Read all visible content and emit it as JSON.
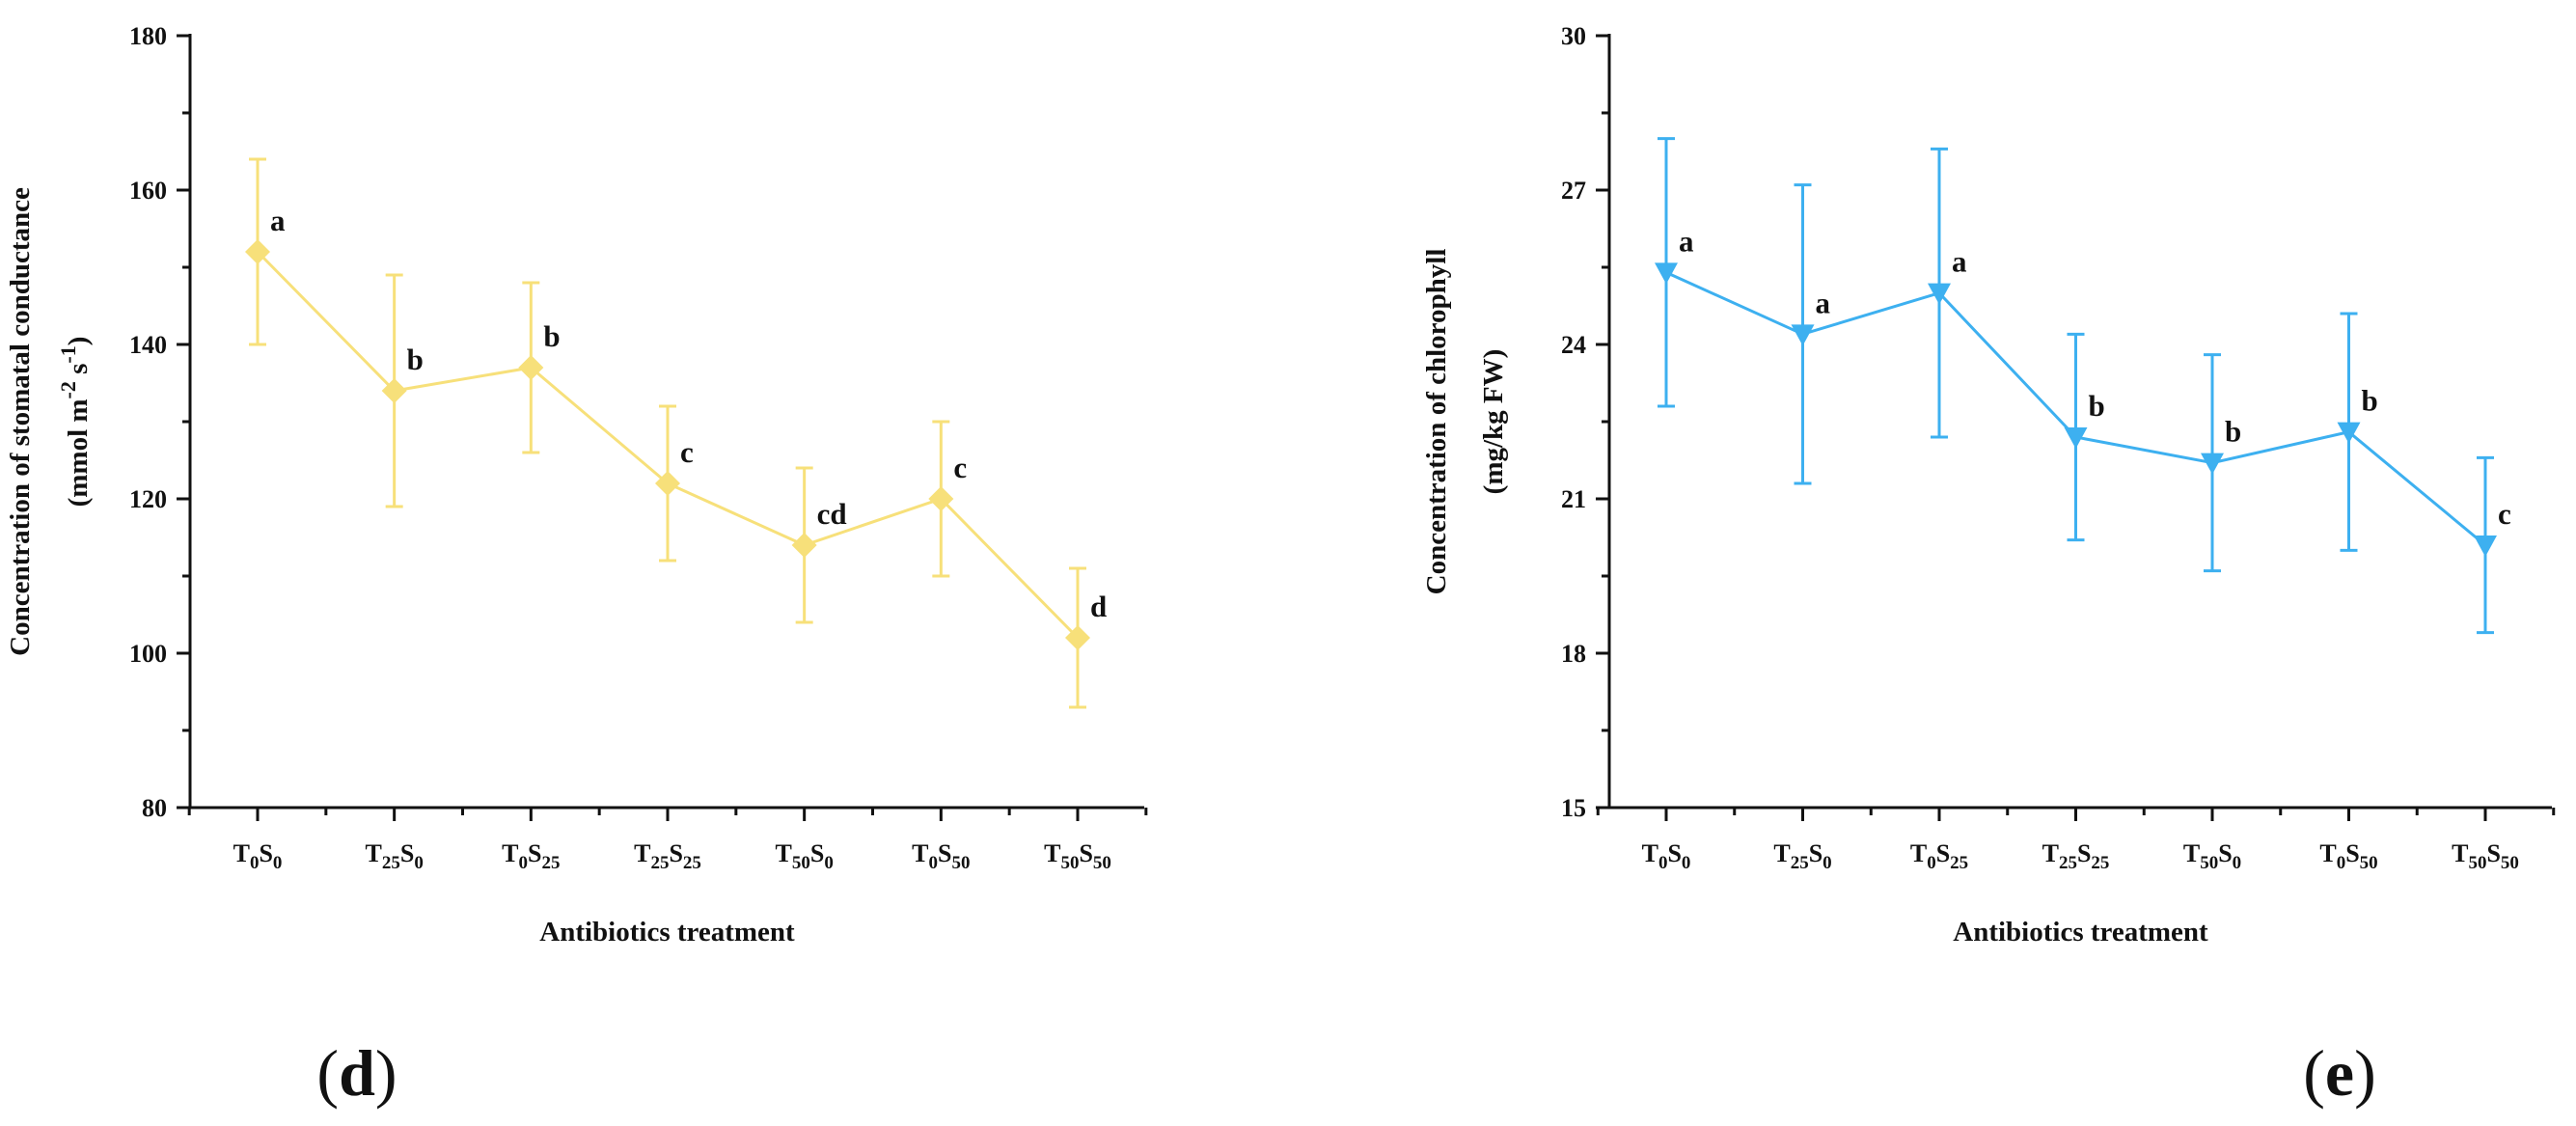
{
  "chart_data": [
    {
      "type": "line",
      "panel_label": "(d)",
      "title": "",
      "xlabel": "Antibiotics treatment",
      "ylabel_line1": "Concentration of stomatal conductance",
      "ylabel_line2": {
        "pre": "(mmol m",
        "sup1": "-2",
        "mid": " s",
        "sup2": "-1",
        "post": ")"
      },
      "categories": [
        {
          "base": "T",
          "sub1": "0",
          "mid": "S",
          "sub2": "0"
        },
        {
          "base": "T",
          "sub1": "25",
          "mid": "S",
          "sub2": "0"
        },
        {
          "base": "T",
          "sub1": "0",
          "mid": "S",
          "sub2": "25"
        },
        {
          "base": "T",
          "sub1": "25",
          "mid": "S",
          "sub2": "25"
        },
        {
          "base": "T",
          "sub1": "50",
          "mid": "S",
          "sub2": "0"
        },
        {
          "base": "T",
          "sub1": "0",
          "mid": "S",
          "sub2": "50"
        },
        {
          "base": "T",
          "sub1": "50",
          "mid": "S",
          "sub2": "50"
        }
      ],
      "values": [
        152,
        134,
        137,
        122,
        114,
        120,
        102
      ],
      "errors": [
        12,
        15,
        11,
        10,
        10,
        10,
        9
      ],
      "significance": [
        "a",
        "b",
        "b",
        "c",
        "cd",
        "c",
        "d"
      ],
      "ylim": [
        80,
        180
      ],
      "yticks": [
        80,
        100,
        120,
        140,
        160,
        180
      ],
      "yminor": 10,
      "marker": "diamond",
      "color": "#F7E07A",
      "grid": false
    },
    {
      "type": "line",
      "panel_label": "(e)",
      "title": "",
      "xlabel": "Antibiotics treatment",
      "ylabel_line1": "Concentration  of  chlorophyll",
      "ylabel_line2": {
        "pre": "(mg/kg FW)",
        "sup1": "",
        "mid": "",
        "sup2": "",
        "post": ""
      },
      "categories": [
        {
          "base": "T",
          "sub1": "0",
          "mid": "S",
          "sub2": "0"
        },
        {
          "base": "T",
          "sub1": "25",
          "mid": "S",
          "sub2": "0"
        },
        {
          "base": "T",
          "sub1": "0",
          "mid": "S",
          "sub2": "25"
        },
        {
          "base": "T",
          "sub1": "25",
          "mid": "S",
          "sub2": "25"
        },
        {
          "base": "T",
          "sub1": "50",
          "mid": "S",
          "sub2": "0"
        },
        {
          "base": "T",
          "sub1": "0",
          "mid": "S",
          "sub2": "50"
        },
        {
          "base": "T",
          "sub1": "50",
          "mid": "S",
          "sub2": "50"
        }
      ],
      "values": [
        25.4,
        24.2,
        25.0,
        22.2,
        21.7,
        22.3,
        20.1
      ],
      "errors": [
        2.6,
        2.9,
        2.8,
        2.0,
        2.1,
        2.3,
        1.7
      ],
      "significance": [
        "a",
        "a",
        "a",
        "b",
        "b",
        "b",
        "c"
      ],
      "ylim": [
        15,
        30
      ],
      "yticks": [
        15,
        18,
        21,
        24,
        27,
        30
      ],
      "yminor": 1.5,
      "marker": "triangle-down",
      "color": "#3DB0F0",
      "grid": false
    }
  ]
}
